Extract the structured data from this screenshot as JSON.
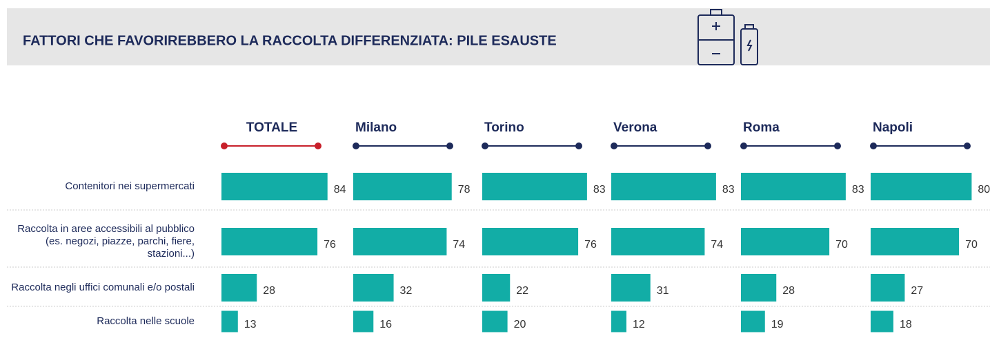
{
  "chart_data": {
    "type": "bar",
    "title": "FATTORI CHE FAVORIREBBERO LA RACCOLTA DIFFERENZIATA: PILE ESAUSTE",
    "categories": [
      "Contenitori nei supermercati",
      "Raccolta in aree accessibili al pubblico (es. negozi, piazze, parchi, fiere, stazioni...)",
      "Raccolta negli uffici comunali e/o postali",
      "Raccolta nelle scuole"
    ],
    "series": [
      {
        "name": "TOTALE",
        "color": "#12ada6",
        "line_color": "#c8202a",
        "values": [
          84,
          76,
          28,
          13
        ]
      },
      {
        "name": "Milano",
        "color": "#12ada6",
        "line_color": "#1d2a5a",
        "values": [
          78,
          74,
          32,
          16
        ]
      },
      {
        "name": "Torino",
        "color": "#12ada6",
        "line_color": "#1d2a5a",
        "values": [
          83,
          76,
          22,
          20
        ]
      },
      {
        "name": "Verona",
        "color": "#12ada6",
        "line_color": "#1d2a5a",
        "values": [
          83,
          74,
          31,
          12
        ]
      },
      {
        "name": "Roma",
        "color": "#12ada6",
        "line_color": "#1d2a5a",
        "values": [
          83,
          70,
          28,
          19
        ]
      },
      {
        "name": "Napoli",
        "color": "#12ada6",
        "line_color": "#1d2a5a",
        "values": [
          80,
          70,
          27,
          18
        ]
      }
    ]
  }
}
